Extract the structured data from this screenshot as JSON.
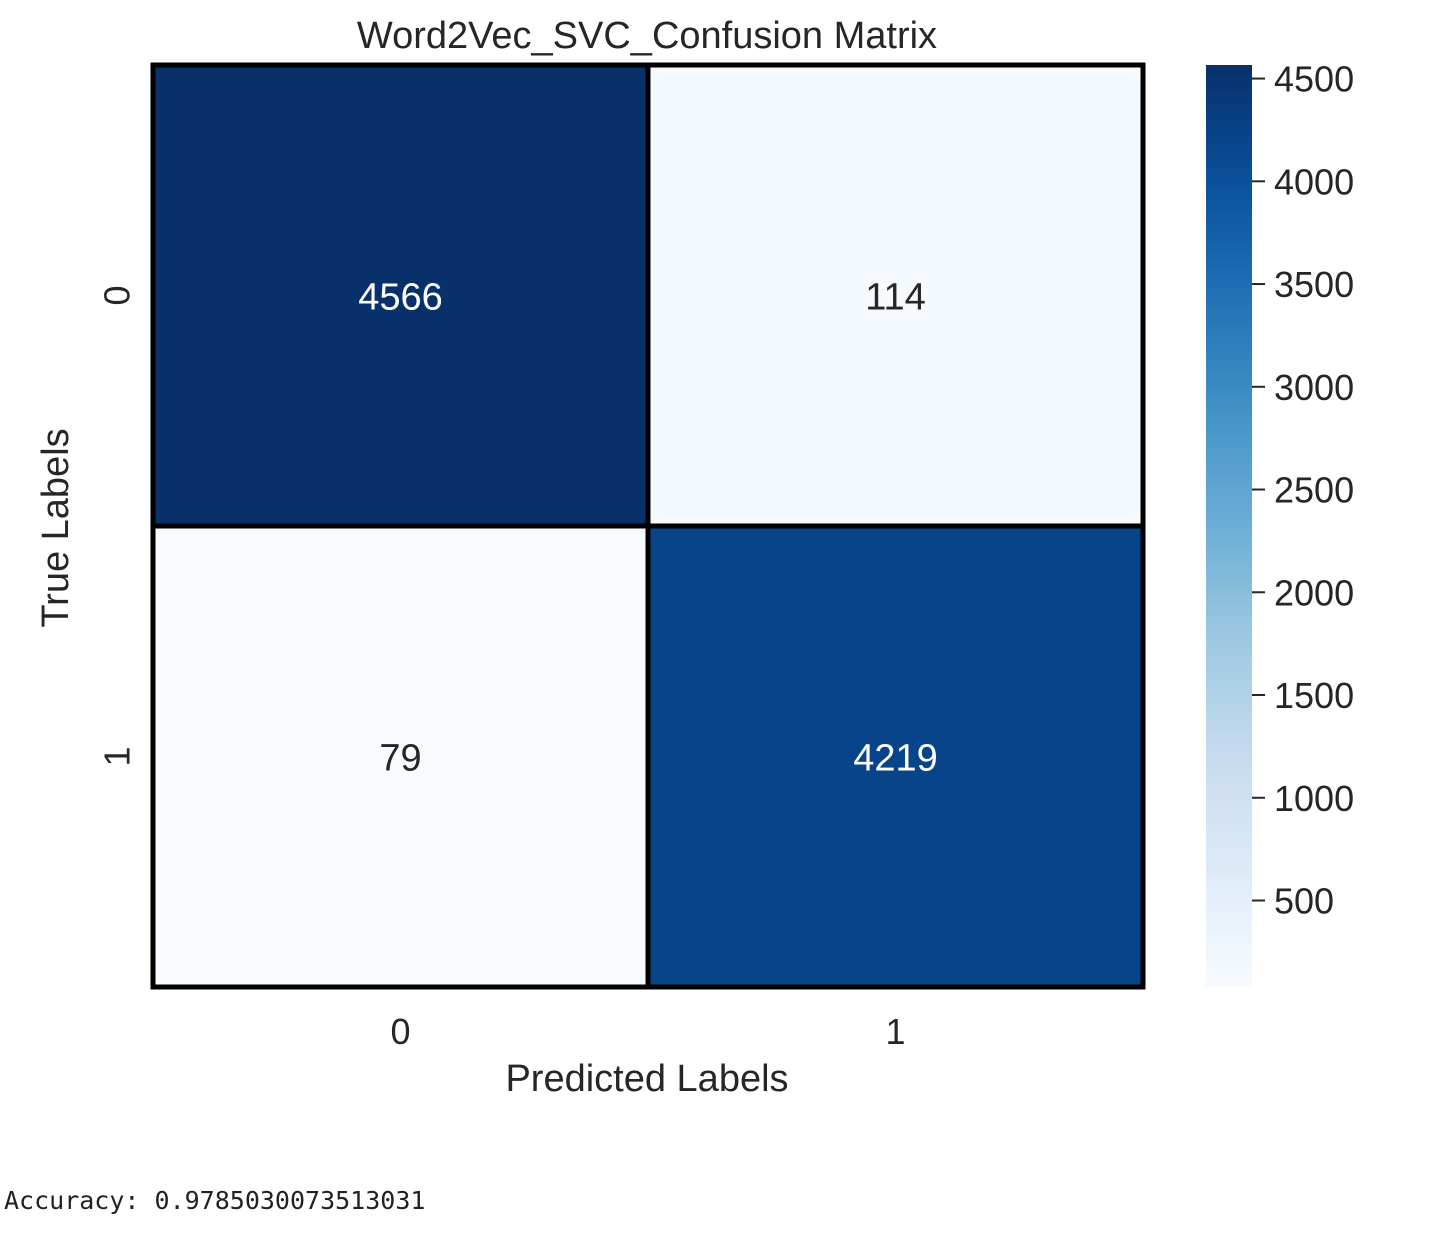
{
  "chart_data": {
    "type": "heatmap",
    "title": "Word2Vec_SVC_Confusion Matrix",
    "xlabel": "Predicted Labels",
    "ylabel": "True Labels",
    "x_categories": [
      "0",
      "1"
    ],
    "y_categories": [
      "0",
      "1"
    ],
    "matrix": [
      [
        4566,
        114
      ],
      [
        79,
        4219
      ]
    ],
    "colormap": "Blues",
    "colorbar": {
      "min": 79,
      "max": 4566,
      "ticks": [
        500,
        1000,
        1500,
        2000,
        2500,
        3000,
        3500,
        4000,
        4500
      ],
      "tick_labels": [
        "500",
        "1000",
        "1500",
        "2000",
        "2500",
        "3000",
        "3500",
        "4000",
        "4500"
      ]
    },
    "colors": {
      "low": "#f7fbff",
      "high": "#08306b",
      "cell_border": "#000000",
      "text_dark": "#262626",
      "text_light": "#ffffff"
    }
  },
  "output": {
    "accuracy_text": "Accuracy: 0.9785030073513031"
  }
}
